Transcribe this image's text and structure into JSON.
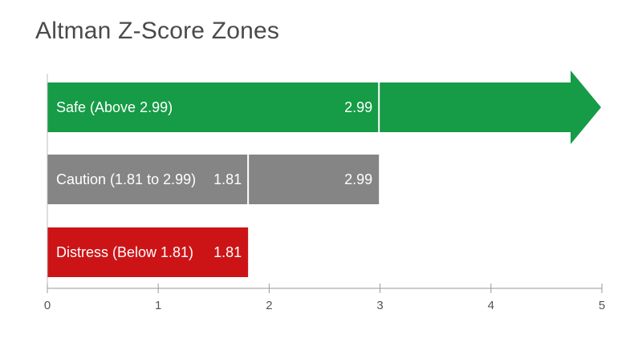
{
  "chart_data": {
    "type": "bar",
    "orientation": "horizontal",
    "title": "Altman Z-Score Zones",
    "xlim": [
      0,
      5
    ],
    "x_ticks": [
      0,
      1,
      2,
      3,
      4,
      5
    ],
    "tick_labels": [
      "0",
      "1",
      "2",
      "3",
      "4",
      "5"
    ],
    "bars": [
      {
        "label": "Safe (Above 2.99)",
        "start": 0,
        "end": 5,
        "open_ended": true,
        "divider": 2.99,
        "value_labels": [
          "2.99"
        ],
        "color": "#169b46"
      },
      {
        "label": "Caution (1.81 to 2.99)",
        "start": 0,
        "end": 2.99,
        "divider": 1.81,
        "value_labels": [
          "1.81",
          "2.99"
        ],
        "color": "#858585"
      },
      {
        "label": "Distress (Below 1.81)",
        "start": 0,
        "end": 1.81,
        "value_labels": [
          "1.81"
        ],
        "color": "#cc1417"
      }
    ],
    "grid": false
  }
}
